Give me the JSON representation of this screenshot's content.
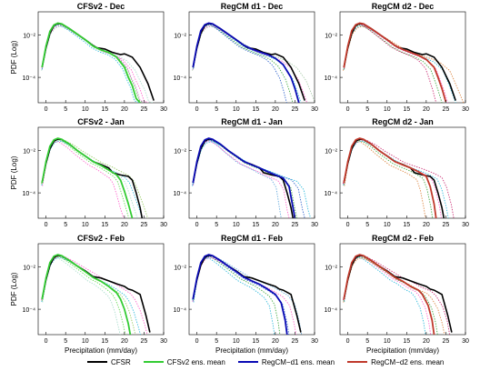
{
  "chart_data": {
    "type": "line",
    "ylabel": "PDF (Log)",
    "xlabel": "Precipitation (mm/day)",
    "xticks": [
      0,
      5,
      10,
      15,
      20,
      25,
      30
    ],
    "yticks": [
      {
        "value": 0.01,
        "label": "10⁻²"
      },
      {
        "value": 0.0001,
        "label": "10⁻⁴"
      }
    ],
    "xlim": [
      -2,
      30
    ],
    "ylim_log10": [
      -5.2,
      -0.9
    ],
    "yscale": "log",
    "legend_position": "bottom",
    "legend": [
      {
        "name": "CFSR",
        "color": "#000000"
      },
      {
        "name": "CFSv2 ens. mean",
        "color": "#33cc33"
      },
      {
        "name": "RegCM−d1 ens. mean",
        "color": "#0a0ab4"
      },
      {
        "name": "RegCM−d2 ens. mean",
        "color": "#c0392b"
      }
    ],
    "panels": [
      {
        "title": "CFSv2 - Dec",
        "cfsr": {
          "x": [
            -1,
            0,
            1,
            2,
            3,
            4,
            6,
            8,
            10,
            12,
            13,
            15,
            17,
            19,
            20,
            22,
            24,
            26,
            27.5
          ],
          "y": [
            0.0003,
            0.0025,
            0.012,
            0.028,
            0.035,
            0.033,
            0.02,
            0.011,
            0.006,
            0.0032,
            0.0025,
            0.0022,
            0.0015,
            0.0012,
            0.0013,
            0.0009,
            0.0003,
            5e-05,
            8e-06
          ]
        },
        "mean": {
          "x": [
            -1,
            0,
            1,
            2,
            3,
            4,
            6,
            8,
            10,
            12,
            14,
            16,
            18,
            20,
            21,
            22,
            23,
            24
          ],
          "y": [
            0.0003,
            0.003,
            0.015,
            0.03,
            0.037,
            0.034,
            0.02,
            0.011,
            0.006,
            0.003,
            0.002,
            0.0015,
            0.0009,
            0.0003,
            0.0001,
            4e-05,
            1e-05,
            5e-06
          ]
        },
        "members": [
          {
            "color": "#66dd55",
            "scale": 0.85,
            "shift": 0.8
          },
          {
            "color": "#ff66cc",
            "scale": 0.75,
            "shift": 2.2
          },
          {
            "color": "#33bbdd",
            "scale": 0.8,
            "shift": -0.5
          },
          {
            "color": "#aaddcc",
            "scale": 0.7,
            "shift": 3.5
          },
          {
            "color": "#dd66dd",
            "scale": 0.9,
            "shift": 1.0
          }
        ]
      },
      {
        "title": "RegCM d1 - Dec",
        "cfsr": {
          "x": [
            -1,
            0,
            1,
            2,
            3,
            4,
            6,
            8,
            10,
            12,
            13,
            15,
            17,
            19,
            20,
            22,
            24,
            26,
            27.5
          ],
          "y": [
            0.0003,
            0.0025,
            0.012,
            0.028,
            0.035,
            0.033,
            0.02,
            0.011,
            0.006,
            0.0032,
            0.0025,
            0.0022,
            0.0015,
            0.0012,
            0.0013,
            0.0009,
            0.0003,
            5e-05,
            8e-06
          ]
        },
        "mean": {
          "x": [
            -1,
            0,
            1,
            2,
            3,
            4,
            6,
            8,
            10,
            12,
            14,
            16,
            18,
            20,
            22,
            24,
            25,
            26
          ],
          "y": [
            0.0003,
            0.003,
            0.016,
            0.031,
            0.037,
            0.034,
            0.02,
            0.011,
            0.006,
            0.0033,
            0.0022,
            0.0016,
            0.0012,
            0.0008,
            0.0004,
            0.0001,
            3e-05,
            6e-06
          ]
        },
        "members": [
          {
            "color": "#44aa44",
            "scale": 0.85,
            "shift": -1.5
          },
          {
            "color": "#33bbdd",
            "scale": 0.8,
            "shift": 0.5
          },
          {
            "color": "#ff66cc",
            "scale": 0.75,
            "shift": 2.0
          },
          {
            "color": "#aaccaa",
            "scale": 0.7,
            "shift": 4.0
          },
          {
            "color": "#3366cc",
            "scale": 0.9,
            "shift": -3.0
          }
        ]
      },
      {
        "title": "RegCM d2 - Dec",
        "cfsr": {
          "x": [
            -1,
            0,
            1,
            2,
            3,
            4,
            6,
            8,
            10,
            12,
            13,
            15,
            17,
            19,
            20,
            22,
            24,
            26,
            27.5
          ],
          "y": [
            0.0003,
            0.0025,
            0.012,
            0.028,
            0.035,
            0.033,
            0.02,
            0.011,
            0.006,
            0.0032,
            0.0025,
            0.0022,
            0.0015,
            0.0012,
            0.0013,
            0.0009,
            0.0003,
            5e-05,
            8e-06
          ]
        },
        "mean": {
          "x": [
            -1,
            0,
            1,
            2,
            3,
            4,
            6,
            8,
            10,
            12,
            14,
            16,
            18,
            20,
            22,
            23,
            24,
            25
          ],
          "y": [
            0.0003,
            0.003,
            0.016,
            0.031,
            0.037,
            0.034,
            0.02,
            0.011,
            0.006,
            0.0032,
            0.0021,
            0.0015,
            0.0011,
            0.0007,
            0.0003,
            0.0001,
            3e-05,
            7e-06
          ]
        },
        "members": [
          {
            "color": "#ff66cc",
            "scale": 0.85,
            "shift": 0.5
          },
          {
            "color": "#44aa44",
            "scale": 0.8,
            "shift": -1.0
          },
          {
            "color": "#33bbdd",
            "scale": 0.75,
            "shift": 2.5
          },
          {
            "color": "#dd8844",
            "scale": 0.7,
            "shift": 4.5
          },
          {
            "color": "#cc3377",
            "scale": 0.9,
            "shift": -2.5
          }
        ]
      },
      {
        "title": "CFSv2 - Jan",
        "cfsr": {
          "x": [
            -1,
            0,
            1,
            2,
            3,
            4,
            6,
            8,
            10,
            12,
            14,
            16,
            17,
            19,
            21,
            22,
            23,
            24,
            24.5
          ],
          "y": [
            0.0003,
            0.0025,
            0.012,
            0.028,
            0.035,
            0.033,
            0.02,
            0.01,
            0.0055,
            0.003,
            0.0022,
            0.0015,
            0.0009,
            0.0007,
            0.0006,
            0.0004,
            0.0001,
            2e-05,
            6e-06
          ]
        },
        "mean": {
          "x": [
            -1,
            0,
            1,
            2,
            3,
            4,
            6,
            8,
            10,
            12,
            14,
            16,
            18,
            19,
            20,
            21,
            22
          ],
          "y": [
            0.0003,
            0.003,
            0.016,
            0.032,
            0.038,
            0.034,
            0.02,
            0.01,
            0.0055,
            0.003,
            0.002,
            0.0012,
            0.0007,
            0.0004,
            0.00012,
            3e-05,
            6e-06
          ]
        },
        "members": [
          {
            "color": "#66dd55",
            "scale": 0.85,
            "shift": -1.0
          },
          {
            "color": "#aaddcc",
            "scale": 0.8,
            "shift": 1.5
          },
          {
            "color": "#33bbdd",
            "scale": 0.75,
            "shift": 3.0
          },
          {
            "color": "#ff66cc",
            "scale": 0.7,
            "shift": -2.5
          },
          {
            "color": "#99cc66",
            "scale": 0.9,
            "shift": 4.5
          }
        ]
      },
      {
        "title": "RegCM d1 - Jan",
        "cfsr": {
          "x": [
            -1,
            0,
            1,
            2,
            3,
            4,
            6,
            8,
            10,
            12,
            14,
            16,
            17,
            19,
            21,
            22,
            23,
            24,
            24.5
          ],
          "y": [
            0.0003,
            0.0025,
            0.012,
            0.028,
            0.035,
            0.033,
            0.02,
            0.01,
            0.0055,
            0.003,
            0.0022,
            0.0015,
            0.0009,
            0.0007,
            0.0006,
            0.0004,
            0.0001,
            2e-05,
            6e-06
          ]
        },
        "mean": {
          "x": [
            -1,
            0,
            1,
            2,
            3,
            4,
            6,
            8,
            10,
            12,
            14,
            16,
            18,
            20,
            22,
            23.5,
            24.5,
            25
          ],
          "y": [
            0.0003,
            0.003,
            0.016,
            0.032,
            0.038,
            0.034,
            0.02,
            0.01,
            0.0055,
            0.003,
            0.0021,
            0.0015,
            0.001,
            0.0007,
            0.0005,
            0.0002,
            2e-05,
            5e-06
          ]
        },
        "members": [
          {
            "color": "#44aa44",
            "scale": 0.85,
            "shift": 0.5
          },
          {
            "color": "#3366cc",
            "scale": 0.8,
            "shift": 2.5
          },
          {
            "color": "#ff66cc",
            "scale": 0.75,
            "shift": -1.5
          },
          {
            "color": "#33bbdd",
            "scale": 0.7,
            "shift": 4.0
          },
          {
            "color": "#66aadd",
            "scale": 0.9,
            "shift": -3.5
          }
        ]
      },
      {
        "title": "RegCM d2 - Jan",
        "cfsr": {
          "x": [
            -1,
            0,
            1,
            2,
            3,
            4,
            6,
            8,
            10,
            12,
            14,
            16,
            17,
            19,
            21,
            22,
            23,
            24,
            24.5
          ],
          "y": [
            0.0003,
            0.0025,
            0.012,
            0.028,
            0.035,
            0.033,
            0.02,
            0.01,
            0.0055,
            0.003,
            0.0022,
            0.0015,
            0.0009,
            0.0007,
            0.0006,
            0.0004,
            0.0001,
            2e-05,
            6e-06
          ]
        },
        "mean": {
          "x": [
            -1,
            0,
            1,
            2,
            3,
            4,
            6,
            8,
            10,
            12,
            14,
            16,
            18,
            20,
            21,
            22,
            22.5
          ],
          "y": [
            0.0003,
            0.003,
            0.016,
            0.032,
            0.038,
            0.034,
            0.02,
            0.01,
            0.0055,
            0.003,
            0.0021,
            0.0015,
            0.001,
            0.0006,
            0.0002,
            3e-05,
            6e-06
          ]
        },
        "members": [
          {
            "color": "#ff66cc",
            "scale": 0.85,
            "shift": 1.5
          },
          {
            "color": "#44aa44",
            "scale": 0.8,
            "shift": -1.0
          },
          {
            "color": "#33bbdd",
            "scale": 0.75,
            "shift": 3.5
          },
          {
            "color": "#dd8844",
            "scale": 0.7,
            "shift": -3.0
          },
          {
            "color": "#cc3377",
            "scale": 0.9,
            "shift": 5.0
          }
        ]
      },
      {
        "title": "CFSv2 - Feb",
        "cfsr": {
          "x": [
            -1,
            0,
            1,
            2,
            3,
            4,
            6,
            8,
            10,
            12,
            14,
            16,
            18,
            20,
            21,
            22,
            24,
            25.5,
            26.5
          ],
          "y": [
            0.0003,
            0.0025,
            0.012,
            0.028,
            0.035,
            0.033,
            0.02,
            0.011,
            0.0065,
            0.0035,
            0.003,
            0.0022,
            0.0016,
            0.0012,
            0.0009,
            0.0008,
            0.0005,
            5e-05,
            8e-06
          ]
        },
        "mean": {
          "x": [
            -1,
            0,
            1,
            2,
            3,
            4,
            6,
            8,
            10,
            12,
            14,
            16,
            18,
            19,
            20,
            21,
            21.5
          ],
          "y": [
            0.0003,
            0.003,
            0.016,
            0.032,
            0.038,
            0.034,
            0.02,
            0.011,
            0.006,
            0.0032,
            0.0021,
            0.0012,
            0.0006,
            0.0003,
            0.0001,
            2e-05,
            6e-06
          ]
        },
        "members": [
          {
            "color": "#66dd55",
            "scale": 0.85,
            "shift": -1.5
          },
          {
            "color": "#99cc66",
            "scale": 0.8,
            "shift": 1.5
          },
          {
            "color": "#33bbdd",
            "scale": 0.75,
            "shift": 3.0
          },
          {
            "color": "#aaddcc",
            "scale": 0.7,
            "shift": -3.0
          },
          {
            "color": "#ff66cc",
            "scale": 0.9,
            "shift": 5.0
          }
        ]
      },
      {
        "title": "RegCM d1 - Feb",
        "cfsr": {
          "x": [
            -1,
            0,
            1,
            2,
            3,
            4,
            6,
            8,
            10,
            12,
            14,
            16,
            18,
            20,
            21,
            22,
            24,
            25.5,
            26.5
          ],
          "y": [
            0.0003,
            0.0025,
            0.012,
            0.028,
            0.035,
            0.033,
            0.02,
            0.011,
            0.0065,
            0.0035,
            0.003,
            0.0022,
            0.0016,
            0.0012,
            0.0009,
            0.0008,
            0.0005,
            5e-05,
            8e-06
          ]
        },
        "mean": {
          "x": [
            -1,
            0,
            1,
            2,
            3,
            4,
            6,
            8,
            10,
            12,
            14,
            16,
            18,
            20,
            21.5,
            22.5,
            23
          ],
          "y": [
            0.0003,
            0.003,
            0.016,
            0.032,
            0.038,
            0.034,
            0.02,
            0.011,
            0.006,
            0.0033,
            0.0022,
            0.0015,
            0.0009,
            0.0005,
            0.0002,
            3e-05,
            6e-06
          ]
        },
        "members": [
          {
            "color": "#44aa44",
            "scale": 0.85,
            "shift": -2.0
          },
          {
            "color": "#3366cc",
            "scale": 0.8,
            "shift": 0.5
          },
          {
            "color": "#ff66cc",
            "scale": 0.75,
            "shift": 2.5
          },
          {
            "color": "#33bbdd",
            "scale": 0.7,
            "shift": -3.5
          },
          {
            "color": "#66aadd",
            "scale": 0.9,
            "shift": 4.0
          }
        ]
      },
      {
        "title": "RegCM d2 - Feb",
        "cfsr": {
          "x": [
            -1,
            0,
            1,
            2,
            3,
            4,
            6,
            8,
            10,
            12,
            14,
            16,
            18,
            20,
            21,
            22,
            24,
            25.5,
            26.5
          ],
          "y": [
            0.0003,
            0.0025,
            0.012,
            0.028,
            0.035,
            0.033,
            0.02,
            0.011,
            0.0065,
            0.0035,
            0.003,
            0.0022,
            0.0016,
            0.0012,
            0.0009,
            0.0008,
            0.0005,
            5e-05,
            8e-06
          ]
        },
        "mean": {
          "x": [
            -1,
            0,
            1,
            2,
            3,
            4,
            6,
            8,
            10,
            12,
            14,
            16,
            18,
            19,
            20.5,
            21.5,
            22
          ],
          "y": [
            0.0003,
            0.003,
            0.016,
            0.032,
            0.038,
            0.034,
            0.02,
            0.011,
            0.006,
            0.0032,
            0.0021,
            0.0012,
            0.0008,
            0.0005,
            0.00015,
            3e-05,
            6e-06
          ]
        },
        "members": [
          {
            "color": "#ff66cc",
            "scale": 0.85,
            "shift": -1.0
          },
          {
            "color": "#44aa44",
            "scale": 0.8,
            "shift": 1.0
          },
          {
            "color": "#33bbdd",
            "scale": 0.75,
            "shift": -2.5
          },
          {
            "color": "#dd8844",
            "scale": 0.7,
            "shift": 3.0
          },
          {
            "color": "#cc3377",
            "scale": 0.9,
            "shift": 4.5
          }
        ]
      }
    ]
  }
}
